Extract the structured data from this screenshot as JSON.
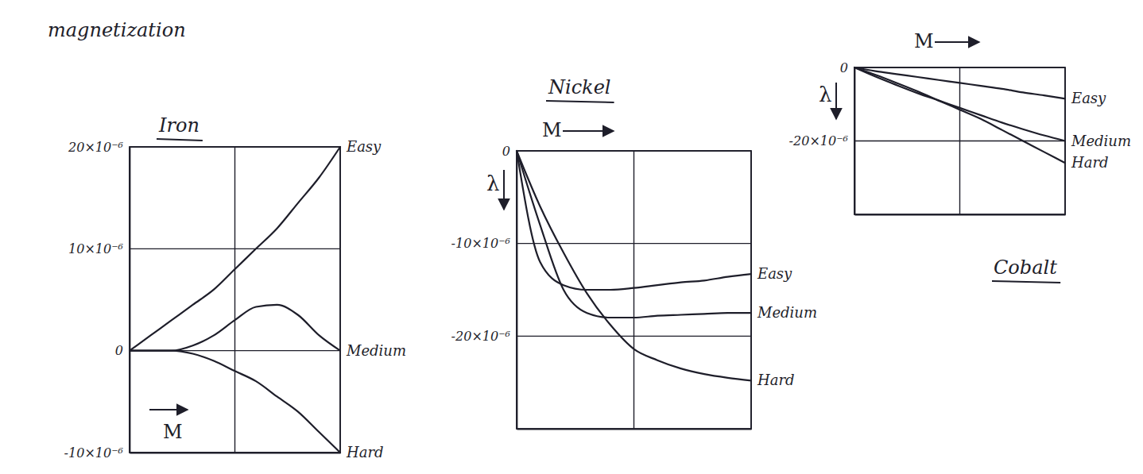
{
  "chart_data": [
    {
      "type": "line",
      "title": "Iron",
      "x_label": "M",
      "annotations": [
        "magnetization"
      ],
      "x": [
        0,
        0.1,
        0.2,
        0.3,
        0.4,
        0.5,
        0.6,
        0.7,
        0.8,
        0.9,
        1
      ],
      "xlim": [
        0,
        1
      ],
      "xticks": [
        0,
        0.5,
        1
      ],
      "ylim": [
        -10,
        20
      ],
      "yticks": [
        {
          "value": -10,
          "label": "-10×10⁻⁶"
        },
        0,
        {
          "value": 10,
          "label": "10×10⁻⁶"
        },
        {
          "value": 20,
          "label": "20×10⁻⁶"
        }
      ],
      "grid": true,
      "tick_labels": "y",
      "color": "#1e1e2a",
      "series": [
        {
          "name": "Easy",
          "color": "#1e1e2a",
          "values": [
            0,
            1.5,
            3,
            4.5,
            6,
            8,
            10,
            12,
            14.5,
            17,
            20
          ]
        },
        {
          "name": "Medium",
          "color": "#1e1e2a",
          "values": [
            0,
            0,
            0,
            0.5,
            1.5,
            3,
            4.3,
            4.5,
            3.5,
            1.5,
            0
          ]
        },
        {
          "name": "Hard",
          "color": "#1e1e2a",
          "values": [
            0,
            0,
            0,
            -0.3,
            -1,
            -2,
            -3,
            -4.5,
            -6,
            -8,
            -10
          ]
        }
      ]
    },
    {
      "type": "line",
      "title": "Nickel",
      "x_label": "M",
      "y_label": "λ",
      "x": [
        0,
        0.1,
        0.2,
        0.3,
        0.4,
        0.5,
        0.6,
        0.7,
        0.8,
        0.9,
        1
      ],
      "xlim": [
        0,
        1
      ],
      "xticks": [
        0,
        0.5,
        1
      ],
      "ylim": [
        -30,
        0
      ],
      "yticks": [
        {
          "value": -20,
          "label": "-20×10⁻⁶"
        },
        {
          "value": -10,
          "label": "-10×10⁻⁶"
        },
        0
      ],
      "grid": true,
      "tick_labels": "y",
      "color": "#1e1e2a",
      "series": [
        {
          "name": "Easy",
          "color": "#1e1e2a",
          "values": [
            0,
            -12,
            -14.5,
            -15,
            -15,
            -14.8,
            -14.5,
            -14.2,
            -14,
            -13.6,
            -13.3
          ]
        },
        {
          "name": "Medium",
          "color": "#1e1e2a",
          "values": [
            0,
            -8,
            -15,
            -17.5,
            -18,
            -18,
            -17.8,
            -17.7,
            -17.6,
            -17.5,
            -17.5
          ]
        },
        {
          "name": "Hard",
          "color": "#1e1e2a",
          "values": [
            0,
            -6,
            -11,
            -15.4,
            -18.8,
            -21.4,
            -22.6,
            -23.5,
            -24.1,
            -24.5,
            -24.8
          ]
        }
      ]
    },
    {
      "type": "line",
      "title": "Cobalt",
      "x_label": "M",
      "y_label": "λ",
      "x": [
        0,
        0.1,
        0.2,
        0.3,
        0.4,
        0.5,
        0.6,
        0.7,
        0.8,
        0.9,
        1
      ],
      "xlim": [
        0,
        1
      ],
      "xticks": [
        0,
        0.5,
        1
      ],
      "ylim": [
        -40,
        0
      ],
      "yticks": [
        {
          "value": -20,
          "label": "-20×10⁻⁶"
        },
        0
      ],
      "grid": true,
      "tick_labels": "y",
      "color": "#1e1e2a",
      "series": [
        {
          "name": "Easy",
          "color": "#1e1e2a",
          "values": [
            0,
            -1,
            -1.8,
            -2.6,
            -3.4,
            -4.2,
            -5,
            -5.8,
            -6.8,
            -7.6,
            -8.5
          ]
        },
        {
          "name": "Medium",
          "color": "#1e1e2a",
          "values": [
            0,
            -2.5,
            -4.8,
            -7,
            -9,
            -11,
            -13,
            -15,
            -16.8,
            -18.5,
            -20
          ]
        },
        {
          "name": "Hard",
          "color": "#1e1e2a",
          "values": [
            0,
            -2,
            -4.2,
            -6.5,
            -9,
            -11.5,
            -14,
            -17,
            -20,
            -23,
            -26
          ]
        }
      ]
    }
  ]
}
